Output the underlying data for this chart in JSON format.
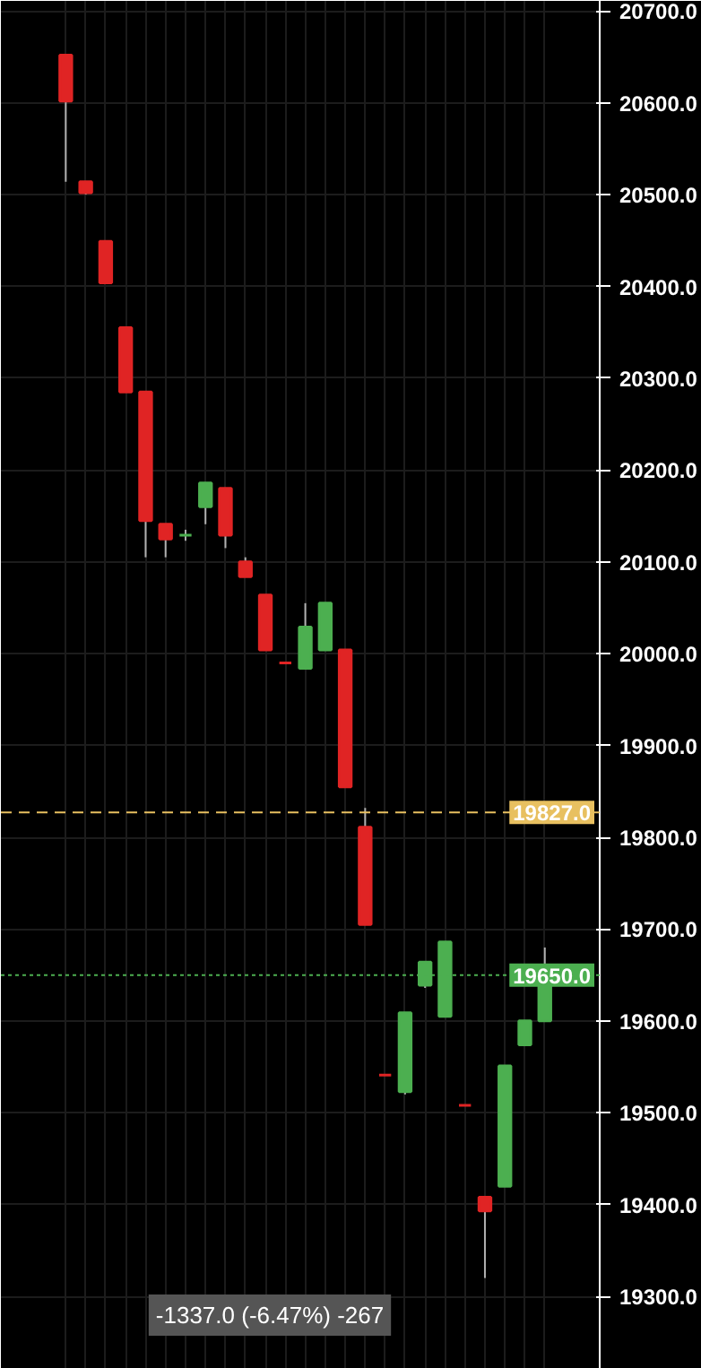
{
  "chart_data": {
    "type": "candlestick",
    "categories": [
      null,
      null,
      null,
      null,
      null,
      null,
      null,
      null,
      null,
      null,
      null,
      null,
      null,
      null,
      null,
      null,
      null,
      null,
      null,
      null,
      null,
      null,
      null,
      null,
      null
    ],
    "ohlc": [
      [
        20652,
        20652,
        20514,
        20602
      ],
      [
        20514,
        20514,
        20500,
        20502
      ],
      [
        20449,
        20449,
        20404,
        20404
      ],
      [
        20355,
        20355,
        20285,
        20285
      ],
      [
        20285,
        20285,
        20105,
        20145
      ],
      [
        20141,
        20141,
        20105,
        20125
      ],
      [
        20129,
        20135,
        20123,
        20129
      ],
      [
        20160,
        20186,
        20141,
        20186
      ],
      [
        20180,
        20180,
        20115,
        20129
      ],
      [
        20100,
        20105,
        20084,
        20084
      ],
      [
        20064,
        20064,
        20004,
        20004
      ],
      [
        19990,
        19990,
        19990,
        19990
      ],
      [
        19984,
        20055,
        19984,
        20029
      ],
      [
        20004,
        20055,
        20004,
        20055
      ],
      [
        20004,
        20004,
        19855,
        19855
      ],
      [
        19811,
        19832,
        19705,
        19705
      ],
      [
        19541,
        19541,
        19541,
        19541
      ],
      [
        19523,
        19609,
        19520,
        19609
      ],
      [
        19639,
        19664,
        19636,
        19664
      ],
      [
        19605,
        19686,
        19605,
        19686
      ],
      [
        19508,
        19508,
        19508,
        19508
      ],
      [
        19408,
        19408,
        19320,
        19393
      ],
      [
        19420,
        19551,
        19420,
        19551
      ],
      [
        19574,
        19600,
        19574,
        19600
      ],
      [
        19600,
        19680,
        19600,
        19652
      ]
    ],
    "colors": [
      "#e02424",
      "#e02424",
      "#e02424",
      "#e02424",
      "#e02424",
      "#e02424",
      "#4caf50",
      "#4caf50",
      "#e02424",
      "#e02424",
      "#e02424",
      "#e02424",
      "#4caf50",
      "#4caf50",
      "#e02424",
      "#e02424",
      "#e02424",
      "#4caf50",
      "#4caf50",
      "#4caf50",
      "#e02424",
      "#e02424",
      "#4caf50",
      "#4caf50",
      "#4caf50"
    ],
    "ylim": [
      19221,
      20711
    ],
    "yticks": [
      {
        "value": 19300,
        "label": "19300.0"
      },
      {
        "value": 19400,
        "label": "19400.0"
      },
      {
        "value": 19500,
        "label": "19500.0"
      },
      {
        "value": 19600,
        "label": "19600.0"
      },
      {
        "value": 19700,
        "label": "19700.0"
      },
      {
        "value": 19800,
        "label": "19800.0"
      },
      {
        "value": 19900,
        "label": "19900.0"
      },
      {
        "value": 20000,
        "label": "20000.0"
      },
      {
        "value": 20100,
        "label": "20100.0"
      },
      {
        "value": 20200,
        "label": "20200.0"
      },
      {
        "value": 20300,
        "label": "20300.0"
      },
      {
        "value": 20400,
        "label": "20400.0"
      },
      {
        "value": 20500,
        "label": "20500.0"
      },
      {
        "value": 20600,
        "label": "20600.0"
      },
      {
        "value": 20700,
        "label": "20700.0"
      }
    ],
    "tick_labels": "y",
    "grid": true,
    "ref_lines": [
      {
        "axis": "y",
        "value": 19827,
        "label": "19827.0",
        "color": "#e8c060",
        "line_style": "dashed"
      },
      {
        "axis": "y",
        "value": 19650,
        "label": "19650.0",
        "color": "#4caf50",
        "line_style": "dotted"
      }
    ],
    "annotations": [
      "-1337.0 (-6.47%) -267"
    ]
  }
}
